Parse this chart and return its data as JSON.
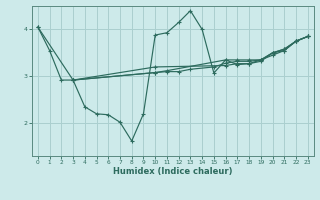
{
  "xlabel": "Humidex (Indice chaleur)",
  "background_color": "#cdeaea",
  "grid_color": "#aacfcf",
  "line_color": "#2d6b5e",
  "spine_color": "#5a8a80",
  "xlim": [
    -0.5,
    23.5
  ],
  "ylim": [
    1.3,
    4.5
  ],
  "yticks": [
    2,
    3,
    4
  ],
  "xticks": [
    0,
    1,
    2,
    3,
    4,
    5,
    6,
    7,
    8,
    9,
    10,
    11,
    12,
    13,
    14,
    15,
    16,
    17,
    18,
    19,
    20,
    21,
    22,
    23
  ],
  "lineA_x": [
    0,
    1,
    2,
    3,
    10,
    11,
    12,
    13,
    15,
    16,
    17,
    18,
    19,
    20,
    21,
    22,
    23
  ],
  "lineA_y": [
    4.05,
    3.55,
    2.92,
    2.92,
    3.08,
    3.1,
    3.1,
    3.15,
    3.2,
    3.28,
    3.32,
    3.32,
    3.35,
    3.45,
    3.55,
    3.75,
    3.85
  ],
  "lineB_x": [
    0,
    3,
    4,
    5,
    6,
    7,
    8,
    9,
    10,
    11,
    12,
    13,
    14,
    15,
    16,
    17,
    18,
    19,
    20,
    21,
    22,
    23
  ],
  "lineB_y": [
    4.05,
    2.92,
    2.35,
    2.2,
    2.18,
    2.02,
    1.62,
    2.2,
    3.88,
    3.93,
    4.15,
    4.4,
    4.0,
    3.07,
    3.35,
    3.25,
    3.27,
    3.35,
    3.5,
    3.55,
    3.75,
    3.85
  ],
  "lineC_x": [
    3,
    10,
    11,
    16,
    17,
    18,
    19,
    20,
    21,
    22,
    23
  ],
  "lineC_y": [
    2.92,
    3.08,
    3.12,
    3.35,
    3.35,
    3.35,
    3.35,
    3.5,
    3.58,
    3.75,
    3.85
  ],
  "lineD_x": [
    3,
    10,
    16,
    17,
    18,
    19,
    20,
    21,
    22,
    23
  ],
  "lineD_y": [
    2.92,
    3.2,
    3.23,
    3.27,
    3.27,
    3.32,
    3.5,
    3.58,
    3.75,
    3.85
  ]
}
